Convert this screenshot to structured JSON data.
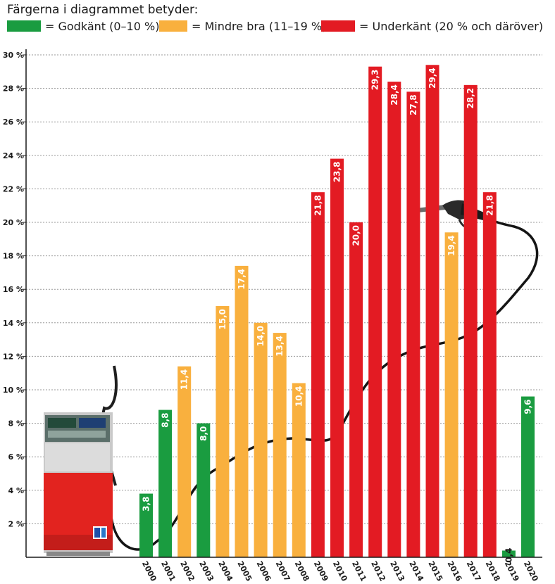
{
  "legend": {
    "title": "Färgerna i diagrammet betyder:",
    "items": [
      {
        "label": "= Godkänt (0–10 %)",
        "color": "#1a9c40"
      },
      {
        "label": "= Mindre bra (11–19 %)",
        "color": "#f9b03e"
      },
      {
        "label": "= Underkänt (20 % och däröver)",
        "color": "#e31b23"
      }
    ]
  },
  "icons": [
    "fuel-pump-icon",
    "fuel-nozzle-icon",
    "fuel-hose-icon"
  ],
  "chart_data": {
    "type": "bar",
    "categories": [
      "2000",
      "2001",
      "2002",
      "2003",
      "2004",
      "2005",
      "2006",
      "2007",
      "2008",
      "2009",
      "2010",
      "2011",
      "2012",
      "2013",
      "2014",
      "2015",
      "2016",
      "2017",
      "2018",
      "2019",
      "2020"
    ],
    "values": [
      3.8,
      8.8,
      11.4,
      8.0,
      15.0,
      17.4,
      14.0,
      13.4,
      10.4,
      21.8,
      23.8,
      20.0,
      29.3,
      28.4,
      27.8,
      29.4,
      19.4,
      28.2,
      21.8,
      0.4,
      9.6
    ],
    "value_labels": [
      "3,8",
      "8,8",
      "11,4",
      "8,0",
      "15,0",
      "17,4",
      "14,0",
      "13,4",
      "10,4",
      "21,8",
      "23,8",
      "20,0",
      "29,3",
      "28,4",
      "27,8",
      "29,4",
      "19,4",
      "28,2",
      "21,8",
      "0,4",
      "9,6"
    ],
    "colors": [
      "#1a9c40",
      "#1a9c40",
      "#f9b03e",
      "#1a9c40",
      "#f9b03e",
      "#f9b03e",
      "#f9b03e",
      "#f9b03e",
      "#f9b03e",
      "#e31b23",
      "#e31b23",
      "#e31b23",
      "#e31b23",
      "#e31b23",
      "#e31b23",
      "#e31b23",
      "#f9b03e",
      "#e31b23",
      "#e31b23",
      "#1a9c40",
      "#1a9c40"
    ],
    "ylim": [
      0,
      30
    ],
    "yticks": [
      2,
      4,
      6,
      8,
      10,
      12,
      14,
      16,
      18,
      20,
      22,
      24,
      26,
      28,
      30
    ],
    "ytick_labels": [
      "2 %",
      "4 %",
      "6 %",
      "8 %",
      "10 %",
      "12 %",
      "14 %",
      "16 %",
      "18 %",
      "20 %",
      "22 %",
      "24 %",
      "26 %",
      "28 %",
      "30 %"
    ],
    "grid": true,
    "title": "",
    "xlabel": "",
    "ylabel": ""
  }
}
